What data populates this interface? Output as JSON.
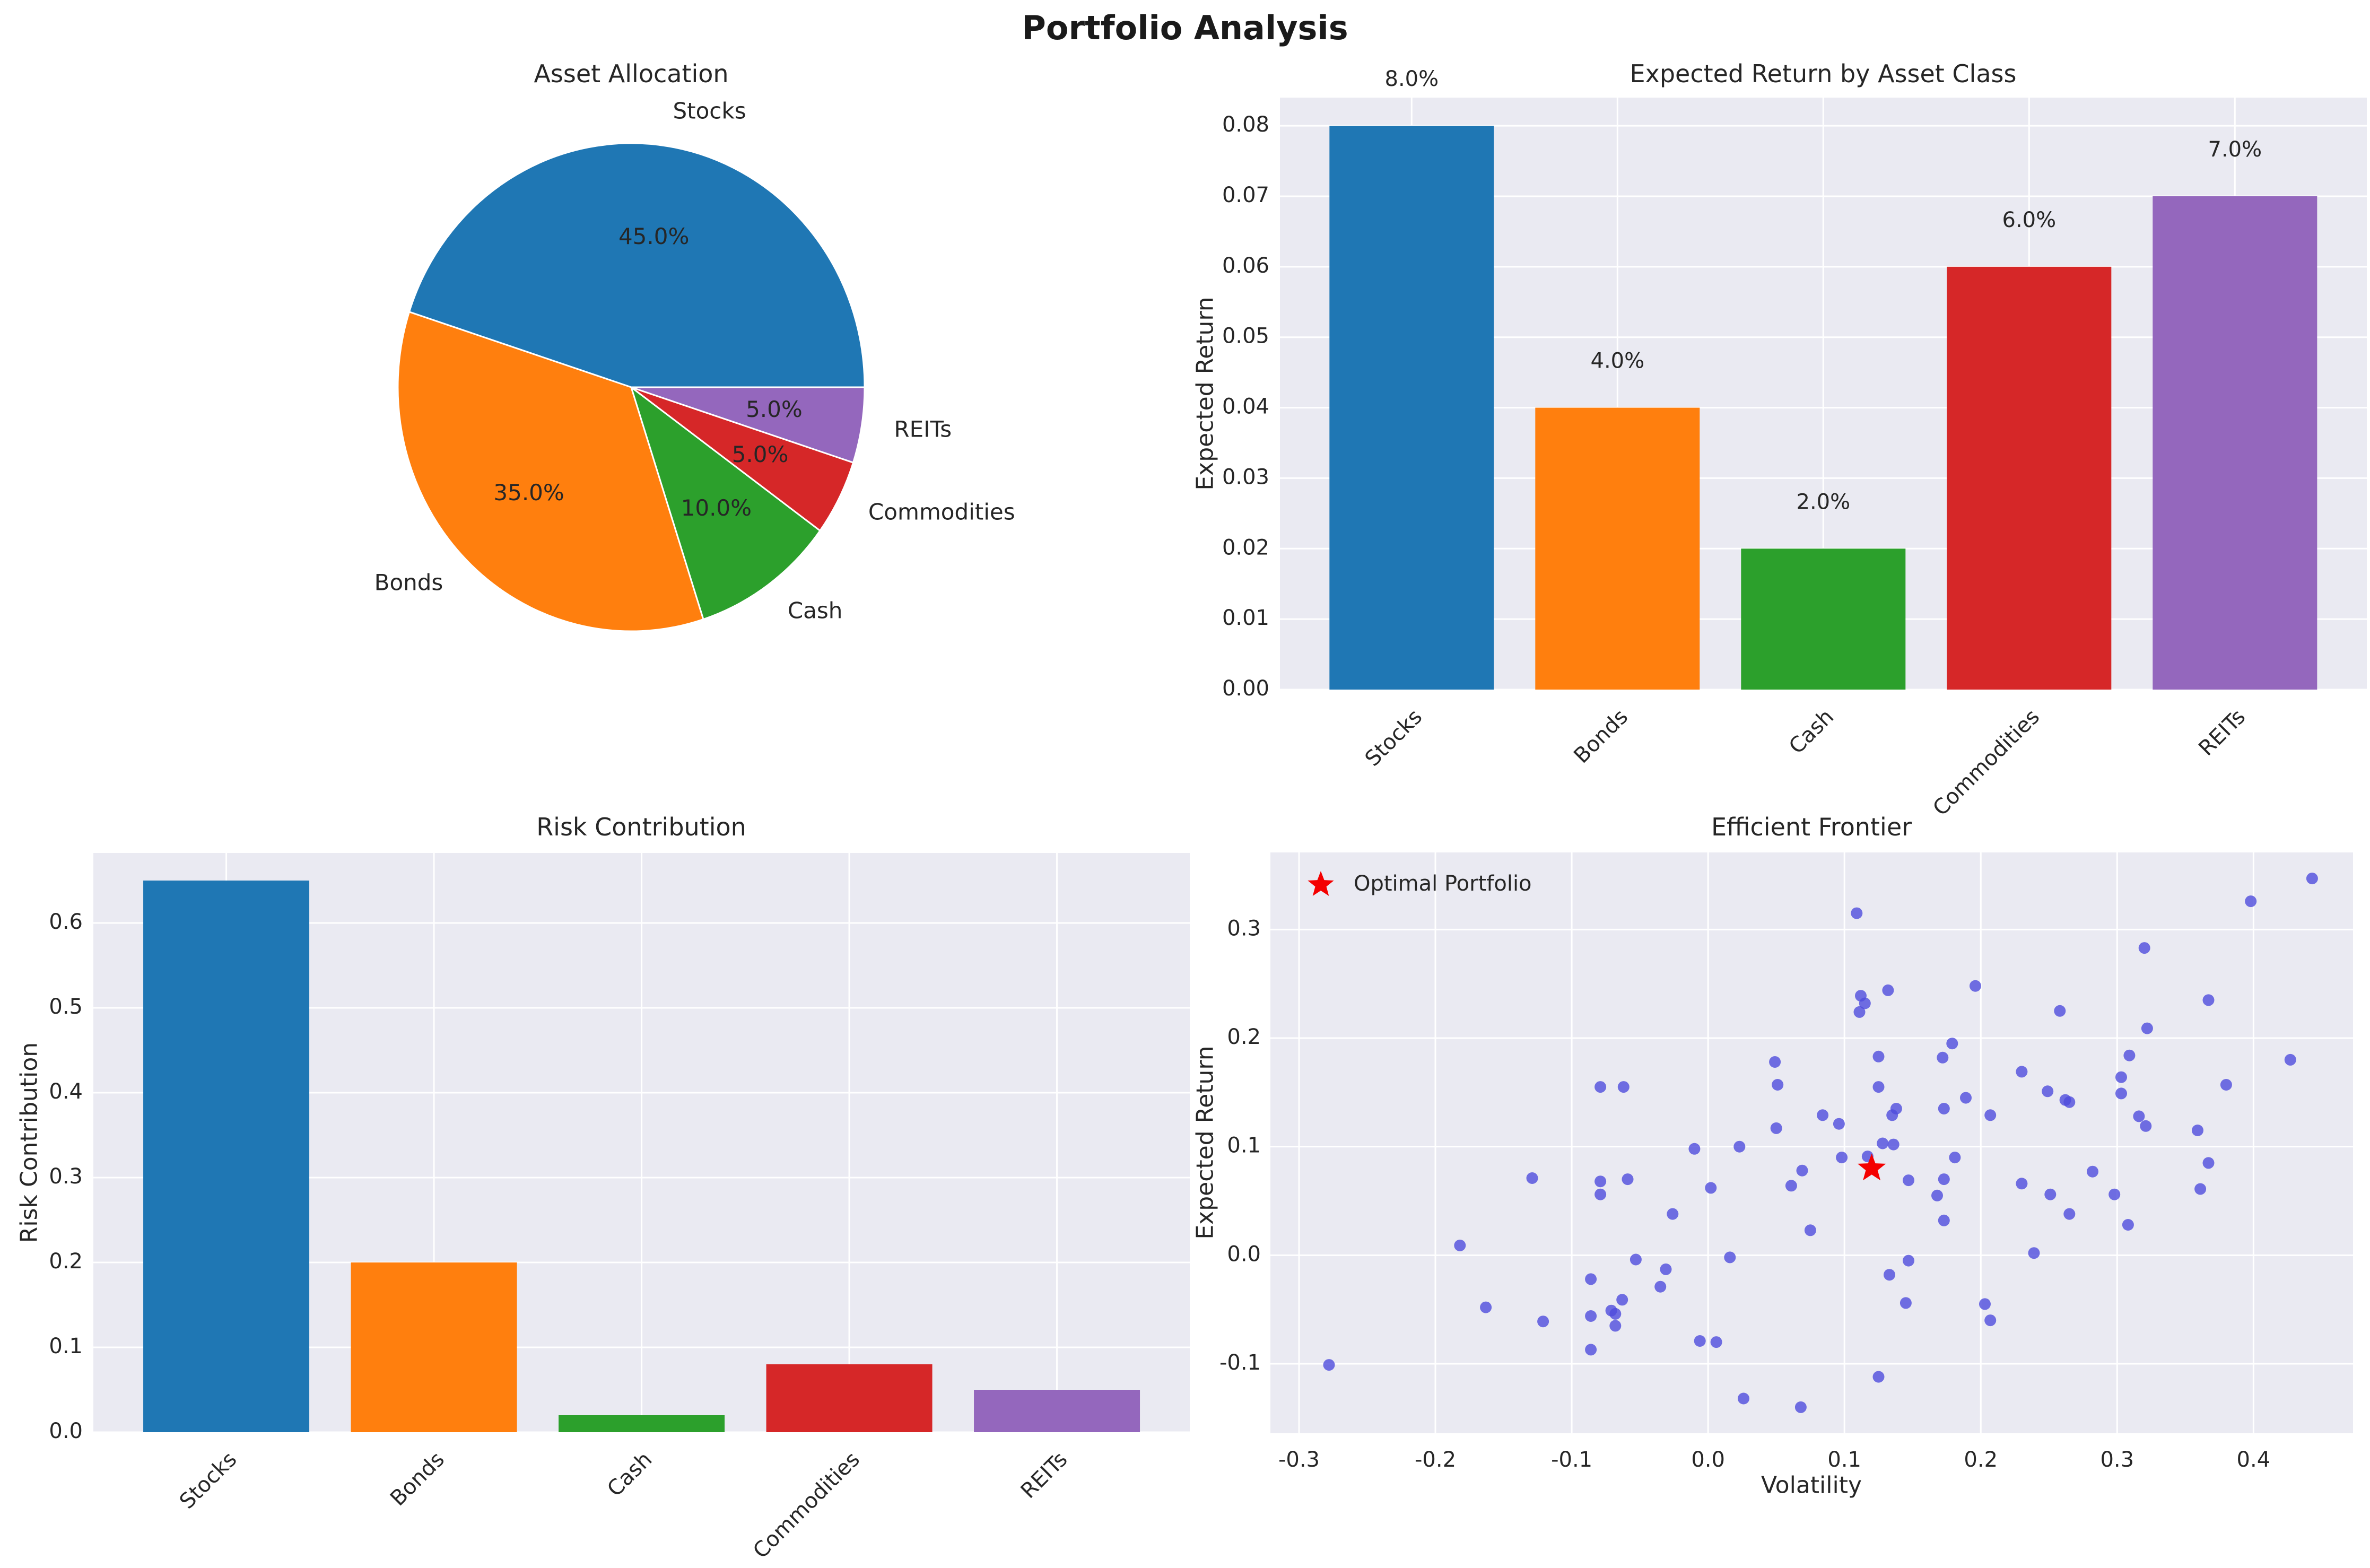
{
  "figure": {
    "title": "Portfolio Analysis",
    "background_color": "#ffffff",
    "axes_background_color": "#eaeaf2",
    "grid_color": "#ffffff",
    "text_color": "#262626",
    "series_colors": [
      "#1f77b4",
      "#ff7f0e",
      "#2ca02c",
      "#d62728",
      "#9467bd"
    ]
  },
  "chart_data": [
    {
      "id": "asset-allocation",
      "type": "pie",
      "title": "Asset Allocation",
      "labels": [
        "Stocks",
        "Bonds",
        "Cash",
        "Commodities",
        "REITs"
      ],
      "values": [
        45.0,
        35.0,
        10.0,
        5.0,
        5.0
      ],
      "pct_labels": [
        "45.0%",
        "35.0%",
        "10.0%",
        "5.0%",
        "5.0%"
      ],
      "colors": [
        "#1f77b4",
        "#ff7f0e",
        "#2ca02c",
        "#d62728",
        "#9467bd"
      ],
      "start_angle": 0,
      "direction": "counterclockwise",
      "wedge_edge_color": "#ffffff"
    },
    {
      "id": "expected-return-by-asset-class",
      "type": "bar",
      "title": "Expected Return by Asset Class",
      "categories": [
        "Stocks",
        "Bonds",
        "Cash",
        "Commodities",
        "REITs"
      ],
      "values": [
        0.08,
        0.04,
        0.02,
        0.06,
        0.07
      ],
      "bar_labels": [
        "8.0%",
        "4.0%",
        "2.0%",
        "6.0%",
        "7.0%"
      ],
      "colors": [
        "#1f77b4",
        "#ff7f0e",
        "#2ca02c",
        "#d62728",
        "#9467bd"
      ],
      "xlabel": "",
      "ylabel": "Expected Return",
      "ylim": [
        0,
        0.084
      ],
      "ytick_values": [
        0.0,
        0.01,
        0.02,
        0.03,
        0.04,
        0.05,
        0.06,
        0.07,
        0.08
      ],
      "ytick_labels": [
        "0.00",
        "0.01",
        "0.02",
        "0.03",
        "0.04",
        "0.05",
        "0.06",
        "0.07",
        "0.08"
      ],
      "grid": true,
      "xtick_rotation": 45
    },
    {
      "id": "risk-contribution",
      "type": "bar",
      "title": "Risk Contribution",
      "categories": [
        "Stocks",
        "Bonds",
        "Cash",
        "Commodities",
        "REITs"
      ],
      "values": [
        0.65,
        0.2,
        0.02,
        0.08,
        0.05
      ],
      "bar_labels": [],
      "colors": [
        "#1f77b4",
        "#ff7f0e",
        "#2ca02c",
        "#d62728",
        "#9467bd"
      ],
      "xlabel": "",
      "ylabel": "Risk Contribution",
      "ylim": [
        0,
        0.6825
      ],
      "ytick_values": [
        0.0,
        0.1,
        0.2,
        0.3,
        0.4,
        0.5,
        0.6
      ],
      "ytick_labels": [
        "0.0",
        "0.1",
        "0.2",
        "0.3",
        "0.4",
        "0.5",
        "0.6"
      ],
      "grid": true,
      "xtick_rotation": 45
    },
    {
      "id": "efficient-frontier",
      "type": "scatter",
      "title": "Efficient Frontier",
      "xlabel": "Volatility",
      "ylabel": "Expected Return",
      "xlim": [
        -0.321,
        0.473
      ],
      "ylim": [
        -0.164,
        0.371
      ],
      "xtick_values": [
        -0.3,
        -0.2,
        -0.1,
        0.0,
        0.1,
        0.2,
        0.3,
        0.4
      ],
      "xtick_labels": [
        "-0.3",
        "-0.2",
        "-0.1",
        "0.0",
        "0.1",
        "0.2",
        "0.3",
        "0.4"
      ],
      "ytick_values": [
        -0.1,
        0.0,
        0.1,
        0.2,
        0.3
      ],
      "ytick_labels": [
        "-0.1",
        "0.0",
        "0.1",
        "0.2",
        "0.3"
      ],
      "grid": true,
      "point_color": "#4f4cdc",
      "point_opacity": 0.8,
      "points": [
        [
          -0.079,
          0.155
        ],
        [
          -0.062,
          0.155
        ],
        [
          0.049,
          0.178
        ],
        [
          0.051,
          0.157
        ],
        [
          0.05,
          0.117
        ],
        [
          0.443,
          0.347
        ],
        [
          0.398,
          0.326
        ],
        [
          0.109,
          0.315
        ],
        [
          0.32,
          0.283
        ],
        [
          0.196,
          0.248
        ],
        [
          0.132,
          0.244
        ],
        [
          0.112,
          0.239
        ],
        [
          0.115,
          0.232
        ],
        [
          0.111,
          0.224
        ],
        [
          0.258,
          0.225
        ],
        [
          0.367,
          0.235
        ],
        [
          0.322,
          0.209
        ],
        [
          0.179,
          0.195
        ],
        [
          0.125,
          0.183
        ],
        [
          0.172,
          0.182
        ],
        [
          0.309,
          0.184
        ],
        [
          0.427,
          0.18
        ],
        [
          0.23,
          0.169
        ],
        [
          0.303,
          0.164
        ],
        [
          0.38,
          0.157
        ],
        [
          0.125,
          0.155
        ],
        [
          0.249,
          0.151
        ],
        [
          0.303,
          0.149
        ],
        [
          0.262,
          0.143
        ],
        [
          0.265,
          0.141
        ],
        [
          0.189,
          0.145
        ],
        [
          0.138,
          0.135
        ],
        [
          0.135,
          0.129
        ],
        [
          0.173,
          0.135
        ],
        [
          0.084,
          0.129
        ],
        [
          0.207,
          0.129
        ],
        [
          0.096,
          0.121
        ],
        [
          0.316,
          0.128
        ],
        [
          0.321,
          0.119
        ],
        [
          0.359,
          0.115
        ],
        [
          0.128,
          0.103
        ],
        [
          0.136,
          0.102
        ],
        [
          -0.01,
          0.098
        ],
        [
          0.023,
          0.1
        ],
        [
          -0.129,
          0.071
        ],
        [
          -0.079,
          0.068
        ],
        [
          -0.059,
          0.07
        ],
        [
          -0.079,
          0.056
        ],
        [
          0.002,
          0.062
        ],
        [
          0.069,
          0.078
        ],
        [
          0.061,
          0.064
        ],
        [
          -0.026,
          0.038
        ],
        [
          0.075,
          0.023
        ],
        [
          -0.182,
          0.009
        ],
        [
          -0.053,
          -0.004
        ],
        [
          0.016,
          -0.002
        ],
        [
          -0.031,
          -0.013
        ],
        [
          -0.086,
          -0.022
        ],
        [
          -0.035,
          -0.029
        ],
        [
          -0.063,
          -0.041
        ],
        [
          -0.163,
          -0.048
        ],
        [
          -0.071,
          -0.051
        ],
        [
          -0.068,
          -0.054
        ],
        [
          -0.086,
          -0.056
        ],
        [
          -0.121,
          -0.061
        ],
        [
          -0.068,
          -0.065
        ],
        [
          -0.006,
          -0.079
        ],
        [
          0.006,
          -0.08
        ],
        [
          -0.086,
          -0.087
        ],
        [
          -0.278,
          -0.101
        ],
        [
          0.026,
          -0.132
        ],
        [
          0.068,
          -0.14
        ],
        [
          0.098,
          0.09
        ],
        [
          0.117,
          0.091
        ],
        [
          0.181,
          0.09
        ],
        [
          0.147,
          0.069
        ],
        [
          0.173,
          0.07
        ],
        [
          0.168,
          0.055
        ],
        [
          0.173,
          0.032
        ],
        [
          0.23,
          0.066
        ],
        [
          0.251,
          0.056
        ],
        [
          0.265,
          0.038
        ],
        [
          0.282,
          0.077
        ],
        [
          0.298,
          0.056
        ],
        [
          0.308,
          0.028
        ],
        [
          0.367,
          0.085
        ],
        [
          0.361,
          0.061
        ],
        [
          0.239,
          0.002
        ],
        [
          0.147,
          -0.005
        ],
        [
          0.133,
          -0.018
        ],
        [
          0.145,
          -0.044
        ],
        [
          0.203,
          -0.045
        ],
        [
          0.207,
          -0.06
        ],
        [
          0.125,
          -0.112
        ]
      ],
      "optimal_portfolio": {
        "x": 0.12,
        "y": 0.08,
        "color": "#f40000"
      },
      "legend": {
        "label": "Optimal Portfolio",
        "position": "upper left",
        "marker": "star"
      }
    }
  ]
}
